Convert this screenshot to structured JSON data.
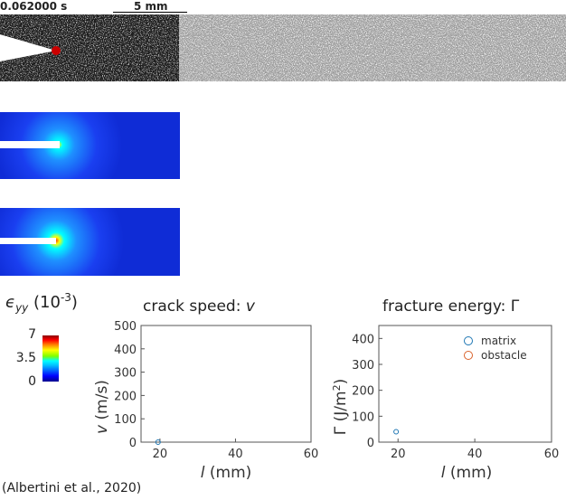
{
  "header": {
    "time": "0.062000 s",
    "scale": "5 mm"
  },
  "colorbar": {
    "symbol": "ϵ",
    "subscript": "yy",
    "unit_base": "(10",
    "unit_exp": "-3",
    "unit_close": ")",
    "ticks": [
      "7",
      "3.5",
      "0"
    ]
  },
  "citation": "(Albertini et al., 2020)",
  "colors": {
    "matrix": "#1f77b4",
    "obstacle": "#d9622b",
    "crack_tip": "#cc0000"
  },
  "chart_data": [
    {
      "type": "scatter",
      "title_prefix": "crack speed: ",
      "title_symbol": "v",
      "xlabel_symbol": "l",
      "xlabel_unit": " (mm)",
      "ylabel_symbol": "v",
      "ylabel_unit": " (m/s)",
      "xlim": [
        15,
        60
      ],
      "ylim": [
        0,
        500
      ],
      "xticks": [
        20,
        40,
        60
      ],
      "yticks": [
        0,
        100,
        200,
        300,
        400,
        500
      ],
      "series": [
        {
          "name": "matrix",
          "x": [
            19.5
          ],
          "y": [
            0
          ]
        }
      ]
    },
    {
      "type": "scatter",
      "title_prefix": "fracture energy: ",
      "title_symbol": "Γ",
      "xlabel_symbol": "l",
      "xlabel_unit": " (mm)",
      "ylabel_symbol": "Γ",
      "ylabel_unit": " (J/m",
      "ylabel_exp": "2",
      "ylabel_close": ")",
      "xlim": [
        15,
        60
      ],
      "ylim": [
        0,
        450
      ],
      "xticks": [
        20,
        40,
        60
      ],
      "yticks": [
        0,
        100,
        200,
        300,
        400
      ],
      "legend": "top-right",
      "series": [
        {
          "name": "matrix",
          "x": [
            19.5
          ],
          "y": [
            40
          ]
        },
        {
          "name": "obstacle",
          "x": [],
          "y": []
        }
      ]
    }
  ]
}
